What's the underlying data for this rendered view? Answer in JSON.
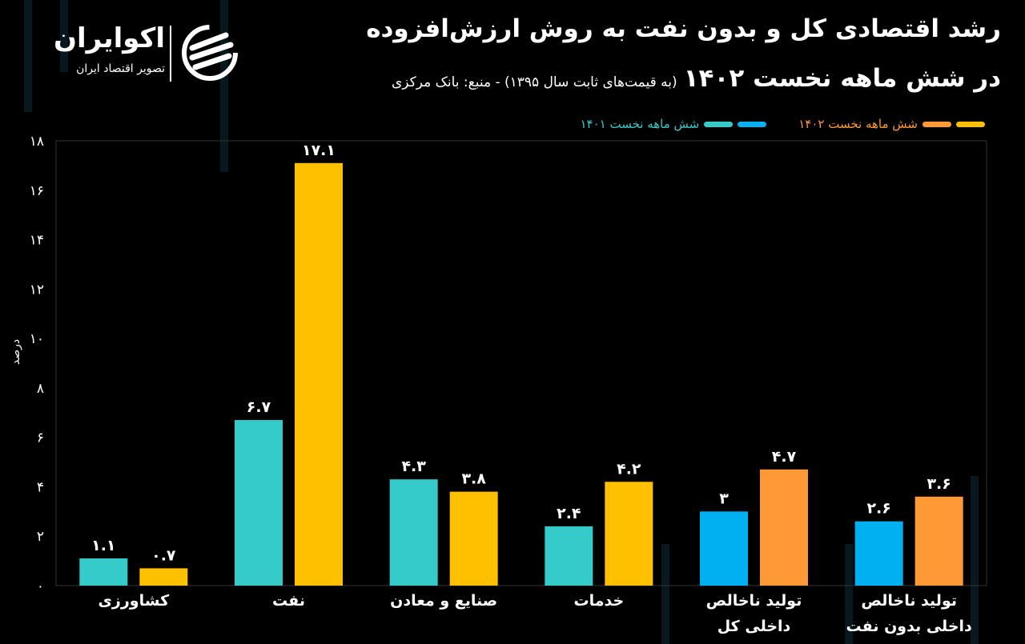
{
  "title_line1": "رشد اقتصادی کل و بدون نفت به روش ارزش‌افزوده",
  "title_line2": "در شش ماهه نخست ۱۴۰۲",
  "subtitle": "(به قیمت‌های ثابت سال ۱۳۹۵) - منبع: بانک مرکزی",
  "logo": {
    "name": "اکوایران",
    "tagline": "تصویر اقتصاد ایران"
  },
  "colors": {
    "teal": "#35CBCB",
    "yellow": "#FFC000",
    "blue": "#00B0F0",
    "orange": "#FF9933",
    "background": "#000000"
  },
  "chart_data": {
    "type": "bar",
    "title": "رشد اقتصادی کل و بدون نفت به روش ارزش‌افزوده در شش ماهه نخست ۱۴۰۲",
    "ylabel": "درصد",
    "xlabel": "",
    "ylim": [
      0,
      18
    ],
    "yticks": [
      0,
      2,
      4,
      6,
      8,
      10,
      12,
      14,
      16,
      18
    ],
    "grid": false,
    "legend_placement": "top-right",
    "categories": [
      "کشاورزی",
      "نفت",
      "صنایع و معادن",
      "خدمات",
      "تولید ناخالص داخلی کل",
      "تولید ناخالص داخلی بدون نفت"
    ],
    "category_lines": [
      [
        "کشاورزی"
      ],
      [
        "نفت"
      ],
      [
        "صنایع و معادن"
      ],
      [
        "خدمات"
      ],
      [
        "تولید ناخالص",
        "داخلی کل"
      ],
      [
        "تولید ناخالص",
        "داخلی بدون نفت"
      ]
    ],
    "series": [
      {
        "name": "شش ماهه نخست ۱۴۰۱",
        "values": [
          1.1,
          6.7,
          4.3,
          2.4,
          3,
          2.6
        ],
        "colors": [
          "#35CBCB",
          "#35CBCB",
          "#35CBCB",
          "#35CBCB",
          "#00B0F0",
          "#00B0F0"
        ]
      },
      {
        "name": "شش ماهه نخست ۱۴۰۲",
        "values": [
          0.7,
          17.1,
          3.8,
          4.2,
          4.7,
          3.6
        ],
        "colors": [
          "#FFC000",
          "#FFC000",
          "#FFC000",
          "#FFC000",
          "#FF9933",
          "#FF9933"
        ]
      }
    ]
  }
}
